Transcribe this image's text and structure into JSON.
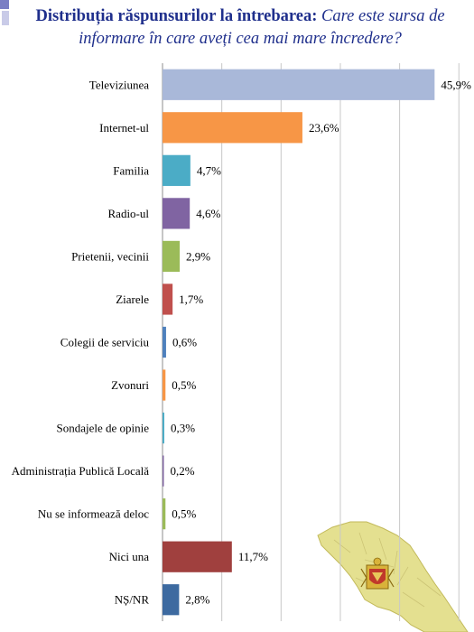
{
  "title": {
    "bold": "Distribuția răspunsurilor la întrebarea:",
    "italic": "Care este sursa de informare în care aveți cea mai mare încredere?"
  },
  "colors": {
    "title": "#1f2f8c",
    "grid": "#c8c8c8"
  },
  "chart_data": {
    "type": "bar",
    "orientation": "horizontal",
    "title": "Distribuția răspunsurilor la întrebarea: Care este sursa de informare în care aveți cea mai mare încredere?",
    "categories": [
      "Televiziunea",
      "Internet-ul",
      "Familia",
      "Radio-ul",
      "Prietenii, vecinii",
      "Ziarele",
      "Colegii de serviciu",
      "Zvonuri",
      "Sondajele de opinie",
      "Administrația Publică Locală",
      "Nu se informează deloc",
      "Nici una",
      "NȘ/NR"
    ],
    "values": [
      45.9,
      23.6,
      4.7,
      4.6,
      2.9,
      1.7,
      0.6,
      0.5,
      0.3,
      0.2,
      0.5,
      11.7,
      2.8
    ],
    "value_labels": [
      "45,9%",
      "23,6%",
      "4,7%",
      "4,6%",
      "2,9%",
      "1,7%",
      "0,6%",
      "0,5%",
      "0,3%",
      "0,2%",
      "0,5%",
      "11,7%",
      "2,8%"
    ],
    "bar_colors": [
      "#a9b8d9",
      "#f79646",
      "#4bacc6",
      "#8064a2",
      "#9bbb59",
      "#c0504d",
      "#4f81bd",
      "#f79646",
      "#4bacc6",
      "#8064a2",
      "#9bbb59",
      "#a0403e",
      "#3d6aa0"
    ],
    "xlim": [
      0,
      50
    ],
    "grid": true,
    "xlabel": "",
    "ylabel": ""
  }
}
